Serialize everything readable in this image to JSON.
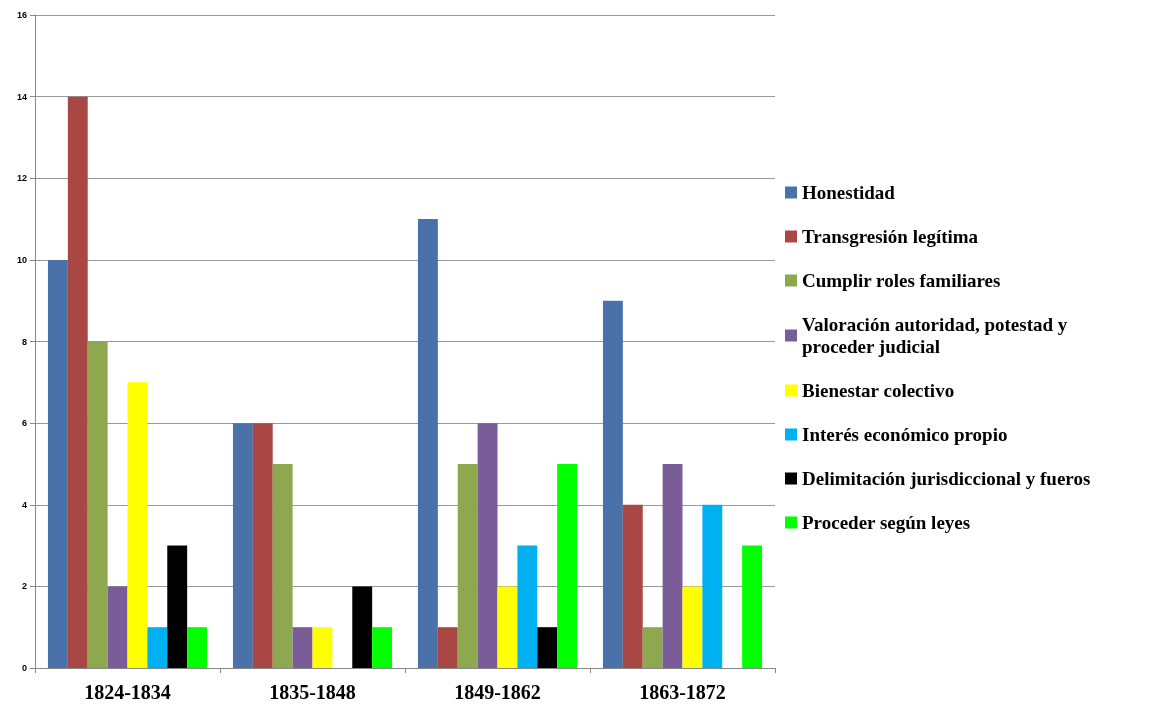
{
  "chart_data": {
    "type": "bar",
    "categories": [
      "1824-1834",
      "1835-1848",
      "1849-1862",
      "1863-1872"
    ],
    "series": [
      {
        "name": "Honestidad",
        "color": "#4a72a8",
        "values": [
          10,
          6,
          11,
          9
        ]
      },
      {
        "name": "Transgresión legítima",
        "color": "#a94744",
        "values": [
          14,
          6,
          1,
          4
        ]
      },
      {
        "name": "Cumplir roles familiares",
        "color": "#8ea84f",
        "values": [
          8,
          5,
          5,
          1
        ]
      },
      {
        "name": "Valoración autoridad, potestad y proceder judicial",
        "color": "#7a5c98",
        "values": [
          2,
          1,
          6,
          5
        ]
      },
      {
        "name": "Bienestar colectivo",
        "color": "#ffff00",
        "values": [
          7,
          1,
          2,
          2
        ]
      },
      {
        "name": "Interés económico propio",
        "color": "#00b0f0",
        "values": [
          1,
          0,
          3,
          4
        ]
      },
      {
        "name": "Delimitación jurisdiccional y fueros",
        "color": "#000000",
        "values": [
          3,
          2,
          1,
          0
        ]
      },
      {
        "name": "Proceder según leyes",
        "color": "#00ff00",
        "values": [
          1,
          1,
          5,
          3
        ]
      }
    ],
    "ylim": [
      0,
      16
    ],
    "yticks": [
      0,
      2,
      4,
      6,
      8,
      10,
      12,
      14,
      16
    ],
    "grid": "y",
    "legend": "right"
  }
}
